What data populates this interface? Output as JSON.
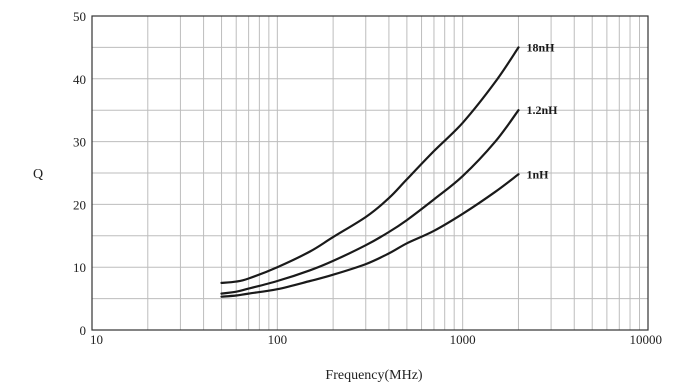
{
  "chart_data": {
    "type": "line",
    "x_scale": "log",
    "xlim": [
      10,
      10000
    ],
    "ylim": [
      0,
      50
    ],
    "grid": true,
    "xlabel": "Frequency(MHz)",
    "ylabel": "Q",
    "x_tick_labels": [
      "10",
      "100",
      "1000",
      "10000"
    ],
    "x_tick_values": [
      10,
      100,
      1000,
      10000
    ],
    "y_tick_labels": [
      "0",
      "10",
      "20",
      "30",
      "40",
      "50"
    ],
    "y_tick_values": [
      0,
      10,
      20,
      30,
      40,
      50
    ],
    "series": [
      {
        "name": "18nH",
        "points": [
          [
            50,
            7.5
          ],
          [
            60,
            7.7
          ],
          [
            70,
            8.2
          ],
          [
            100,
            10
          ],
          [
            150,
            12.5
          ],
          [
            200,
            14.8
          ],
          [
            300,
            18
          ],
          [
            400,
            21
          ],
          [
            500,
            24
          ],
          [
            700,
            28.5
          ],
          [
            1000,
            33
          ],
          [
            1500,
            39.5
          ],
          [
            2000,
            45
          ]
        ]
      },
      {
        "name": "1.2nH",
        "points": [
          [
            50,
            5.8
          ],
          [
            60,
            6.1
          ],
          [
            70,
            6.6
          ],
          [
            100,
            7.8
          ],
          [
            150,
            9.5
          ],
          [
            200,
            11
          ],
          [
            300,
            13.5
          ],
          [
            400,
            15.6
          ],
          [
            500,
            17.5
          ],
          [
            700,
            20.8
          ],
          [
            1000,
            24.5
          ],
          [
            1500,
            30
          ],
          [
            2000,
            35
          ]
        ]
      },
      {
        "name": "1nH",
        "points": [
          [
            50,
            5.3
          ],
          [
            60,
            5.5
          ],
          [
            70,
            5.8
          ],
          [
            100,
            6.5
          ],
          [
            150,
            7.8
          ],
          [
            200,
            8.8
          ],
          [
            300,
            10.5
          ],
          [
            400,
            12.2
          ],
          [
            500,
            13.8
          ],
          [
            700,
            15.8
          ],
          [
            1000,
            18.5
          ],
          [
            1500,
            22
          ],
          [
            2000,
            24.8
          ]
        ]
      }
    ],
    "colors": {
      "line": "#1a1a1a",
      "grid": "#bdbdbd",
      "axis": "#333333"
    }
  }
}
